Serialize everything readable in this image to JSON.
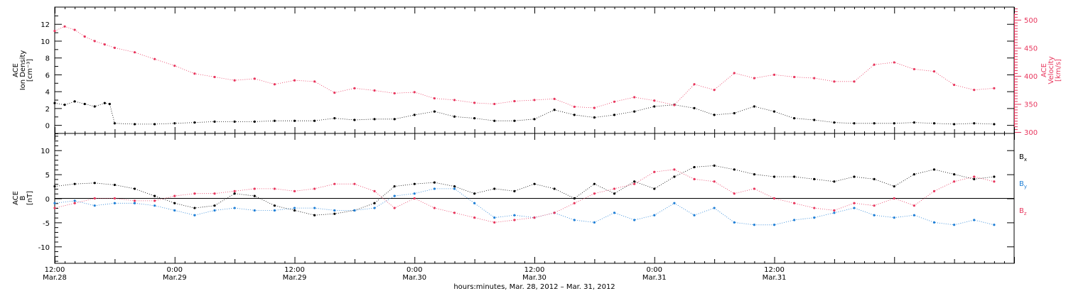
{
  "chart_data": [
    {
      "type": "scatter",
      "panel": "top",
      "ylabel": [
        "ACE",
        "Ion Density",
        "[cm⁻³]"
      ],
      "ylabel_right": [
        "ACE",
        "Velocity",
        "[km/s]"
      ],
      "ylim": [
        -1,
        14
      ],
      "ylim_right": [
        297.5,
        522.5
      ],
      "ytick_labels": [
        "0",
        "2",
        "4",
        "6",
        "8",
        "10",
        "12"
      ],
      "ytick_labels_right": [
        "300",
        "350",
        "400",
        "450",
        "500"
      ],
      "series": [
        {
          "axis": "left",
          "color": "#000000",
          "x": [
            0,
            1,
            2,
            3,
            4,
            5,
            5.5,
            6,
            8,
            10,
            12,
            14,
            16,
            18,
            20,
            22,
            24,
            26,
            28,
            30,
            32,
            34,
            36,
            38,
            40,
            42,
            44,
            46,
            48,
            50,
            52,
            54,
            56,
            58,
            60,
            62,
            64,
            66,
            68,
            70,
            72,
            74,
            76,
            78,
            80,
            82,
            84,
            86,
            88,
            90,
            92,
            94
          ],
          "y": [
            2.6,
            2.4,
            2.8,
            2.5,
            2.2,
            2.6,
            2.5,
            0.2,
            0.1,
            0.1,
            0.2,
            0.3,
            0.4,
            0.4,
            0.4,
            0.5,
            0.5,
            0.5,
            0.8,
            0.6,
            0.7,
            0.7,
            1.2,
            1.6,
            1.0,
            0.8,
            0.5,
            0.5,
            0.7,
            1.8,
            1.2,
            0.9,
            1.2,
            1.6,
            2.2,
            2.4,
            2.0,
            1.2,
            1.4,
            2.2,
            1.6,
            0.8,
            0.6,
            0.3,
            0.2,
            0.2,
            0.2,
            0.3,
            0.2,
            0.1,
            0.2,
            0.1
          ]
        },
        {
          "axis": "right",
          "color": "#e8365d",
          "x": [
            0,
            1,
            2,
            3,
            4,
            5,
            6,
            8,
            10,
            12,
            14,
            16,
            18,
            20,
            22,
            24,
            26,
            28,
            30,
            32,
            34,
            36,
            38,
            40,
            42,
            44,
            46,
            48,
            50,
            52,
            54,
            56,
            58,
            60,
            62,
            64,
            66,
            68,
            70,
            72,
            74,
            76,
            78,
            80,
            82,
            84,
            86,
            88,
            90,
            92,
            94
          ],
          "y": [
            480,
            488,
            482,
            470,
            462,
            456,
            450,
            442,
            430,
            418,
            404,
            398,
            392,
            395,
            385,
            392,
            390,
            370,
            378,
            374,
            369,
            371,
            360,
            357,
            352,
            350,
            355,
            357,
            359,
            345,
            343,
            354,
            362,
            356,
            348,
            385,
            375,
            405,
            396,
            402,
            398,
            396,
            390,
            390,
            420,
            424,
            412,
            408,
            384,
            375,
            378
          ]
        }
      ]
    },
    {
      "type": "scatter",
      "panel": "bottom",
      "ylabel": [
        "ACE",
        "B",
        "[nT]"
      ],
      "ylim": [
        -13.5,
        13.5
      ],
      "ytick_labels": [
        "-10",
        "-5",
        "0",
        "5",
        "10"
      ],
      "series": [
        {
          "name": "Bx",
          "color": "#000000",
          "x": [
            0,
            2,
            4,
            6,
            8,
            10,
            12,
            14,
            16,
            18,
            20,
            22,
            24,
            26,
            28,
            30,
            32,
            34,
            36,
            38,
            40,
            42,
            44,
            46,
            48,
            50,
            52,
            54,
            56,
            58,
            60,
            62,
            64,
            66,
            68,
            70,
            72,
            74,
            76,
            78,
            80,
            82,
            84,
            86,
            88,
            90,
            92,
            94
          ],
          "y": [
            2.5,
            3,
            3.2,
            2.8,
            2.0,
            0.5,
            -1,
            -2,
            -1.5,
            1.0,
            0.5,
            -1.5,
            -2.5,
            -3.5,
            -3.2,
            -2.5,
            -1,
            2.5,
            3.0,
            3.3,
            2.5,
            1.0,
            2.0,
            1.5,
            3.0,
            2.0,
            0,
            3.0,
            1.0,
            3.5,
            2.0,
            4.5,
            6.5,
            6.8,
            6.0,
            5.0,
            4.5,
            4.5,
            4.0,
            3.5,
            4.5,
            4.0,
            2.5,
            5.0,
            6.0,
            5.0,
            4.0,
            4.5
          ]
        },
        {
          "name": "By",
          "color": "#1f7fd6",
          "x": [
            0,
            2,
            4,
            6,
            8,
            10,
            12,
            14,
            16,
            18,
            20,
            22,
            24,
            26,
            28,
            30,
            32,
            34,
            36,
            38,
            40,
            42,
            44,
            46,
            48,
            50,
            52,
            54,
            56,
            58,
            60,
            62,
            64,
            66,
            68,
            70,
            72,
            74,
            76,
            78,
            80,
            82,
            84,
            86,
            88,
            90,
            92,
            94
          ],
          "y": [
            -1,
            -0.5,
            -1.5,
            -1,
            -1,
            -1.5,
            -2.5,
            -3.5,
            -2.5,
            -2.0,
            -2.5,
            -2.5,
            -2.0,
            -2.0,
            -2.5,
            -2.5,
            -2,
            0.5,
            1.0,
            2.0,
            2.0,
            -1.0,
            -4.0,
            -3.5,
            -4.0,
            -3.0,
            -4.5,
            -5.0,
            -3.0,
            -4.5,
            -3.5,
            -1.0,
            -3.5,
            -2.0,
            -5.0,
            -5.5,
            -5.5,
            -4.5,
            -4.0,
            -3.0,
            -2.0,
            -3.5,
            -4.0,
            -3.5,
            -5.0,
            -5.5,
            -4.5,
            -5.5
          ]
        },
        {
          "name": "Bz",
          "color": "#e8365d",
          "x": [
            0,
            2,
            4,
            6,
            8,
            10,
            12,
            14,
            16,
            18,
            20,
            22,
            24,
            26,
            28,
            30,
            32,
            34,
            36,
            38,
            40,
            42,
            44,
            46,
            48,
            50,
            52,
            54,
            56,
            58,
            60,
            62,
            64,
            66,
            68,
            70,
            72,
            74,
            76,
            78,
            80,
            82,
            84,
            86,
            88,
            90,
            92,
            94
          ],
          "y": [
            -2,
            -1,
            0,
            0,
            -0.5,
            -0.5,
            0.5,
            1.0,
            1.0,
            1.5,
            2.0,
            2.0,
            1.5,
            2.0,
            3.0,
            3.0,
            1.5,
            -2,
            0,
            -2.0,
            -3.0,
            -4.0,
            -5.0,
            -4.5,
            -4.0,
            -3.0,
            -1.0,
            1.0,
            2.0,
            3.0,
            5.5,
            6.0,
            4.0,
            3.5,
            1.0,
            2.0,
            0,
            -1.0,
            -2.0,
            -2.5,
            -1.0,
            -1.5,
            0,
            -1.5,
            1.5,
            3.5,
            4.5,
            3.5
          ]
        }
      ],
      "legend": [
        {
          "main": "B",
          "sub": "x",
          "color": "#000000"
        },
        {
          "main": "B",
          "sub": "y",
          "color": "#1f7fd6"
        },
        {
          "main": "B",
          "sub": "z",
          "color": "#e8365d"
        }
      ]
    }
  ],
  "x_axis": {
    "range_hours": [
      0,
      96
    ],
    "major_ticks": [
      {
        "h": 0,
        "time": "12:00",
        "date": "Mar.28"
      },
      {
        "h": 12,
        "time": "0:00",
        "date": "Mar.29"
      },
      {
        "h": 24,
        "time": "12:00",
        "date": "Mar.29"
      },
      {
        "h": 36,
        "time": "0:00",
        "date": "Mar.30"
      },
      {
        "h": 48,
        "time": "12:00",
        "date": "Mar.30"
      },
      {
        "h": 60,
        "time": "0:00",
        "date": "Mar.31"
      },
      {
        "h": 72,
        "time": "12:00",
        "date": "Mar.31"
      }
    ],
    "xlabel": "hours:minutes, Mar. 28, 2012 – Mar. 31, 2012"
  },
  "colors": {
    "black": "#000000",
    "red": "#e8365d",
    "blue": "#1f7fd6"
  }
}
